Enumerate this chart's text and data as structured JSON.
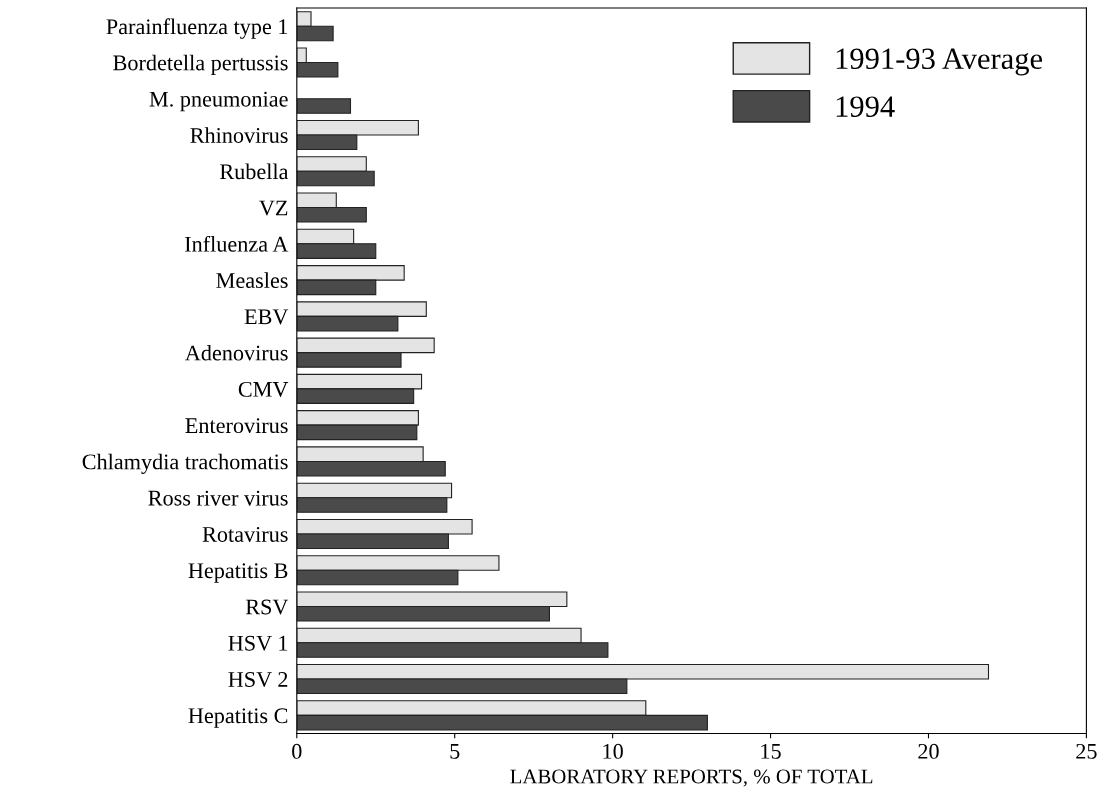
{
  "chart_data": {
    "type": "bar",
    "orientation": "horizontal",
    "xlabel": "LABORATORY REPORTS, % OF TOTAL",
    "categories": [
      "Parainfluenza type 1",
      "Bordetella pertussis",
      "M. pneumoniae",
      "Rhinovirus",
      "Rubella",
      "VZ",
      "Influenza A",
      "Measles",
      "EBV",
      "Adenovirus",
      "CMV",
      "Enterovirus",
      "Chlamydia trachomatis",
      "Ross river virus",
      "Rotavirus",
      "Hepatitis B",
      "RSV",
      "HSV 1",
      "HSV 2",
      "Hepatitis C"
    ],
    "series": [
      {
        "name": "1991-93 Average",
        "color": "#e4e4e4",
        "values": [
          0.45,
          0.3,
          null,
          3.85,
          2.2,
          1.25,
          1.8,
          3.4,
          4.1,
          4.35,
          3.95,
          3.85,
          4.0,
          4.9,
          5.55,
          6.4,
          8.55,
          9.0,
          21.9,
          11.05
        ]
      },
      {
        "name": "1994",
        "color": "#4a4a4a",
        "values": [
          1.15,
          1.3,
          1.7,
          1.9,
          2.45,
          2.2,
          2.5,
          2.5,
          3.2,
          3.3,
          3.7,
          3.8,
          4.7,
          4.75,
          4.8,
          5.1,
          8.0,
          9.85,
          10.45,
          13.0
        ]
      }
    ],
    "xlim": [
      0,
      25
    ],
    "xticks": [
      0,
      5,
      10,
      15,
      20,
      25
    ],
    "grid": false,
    "legend": "top right"
  }
}
